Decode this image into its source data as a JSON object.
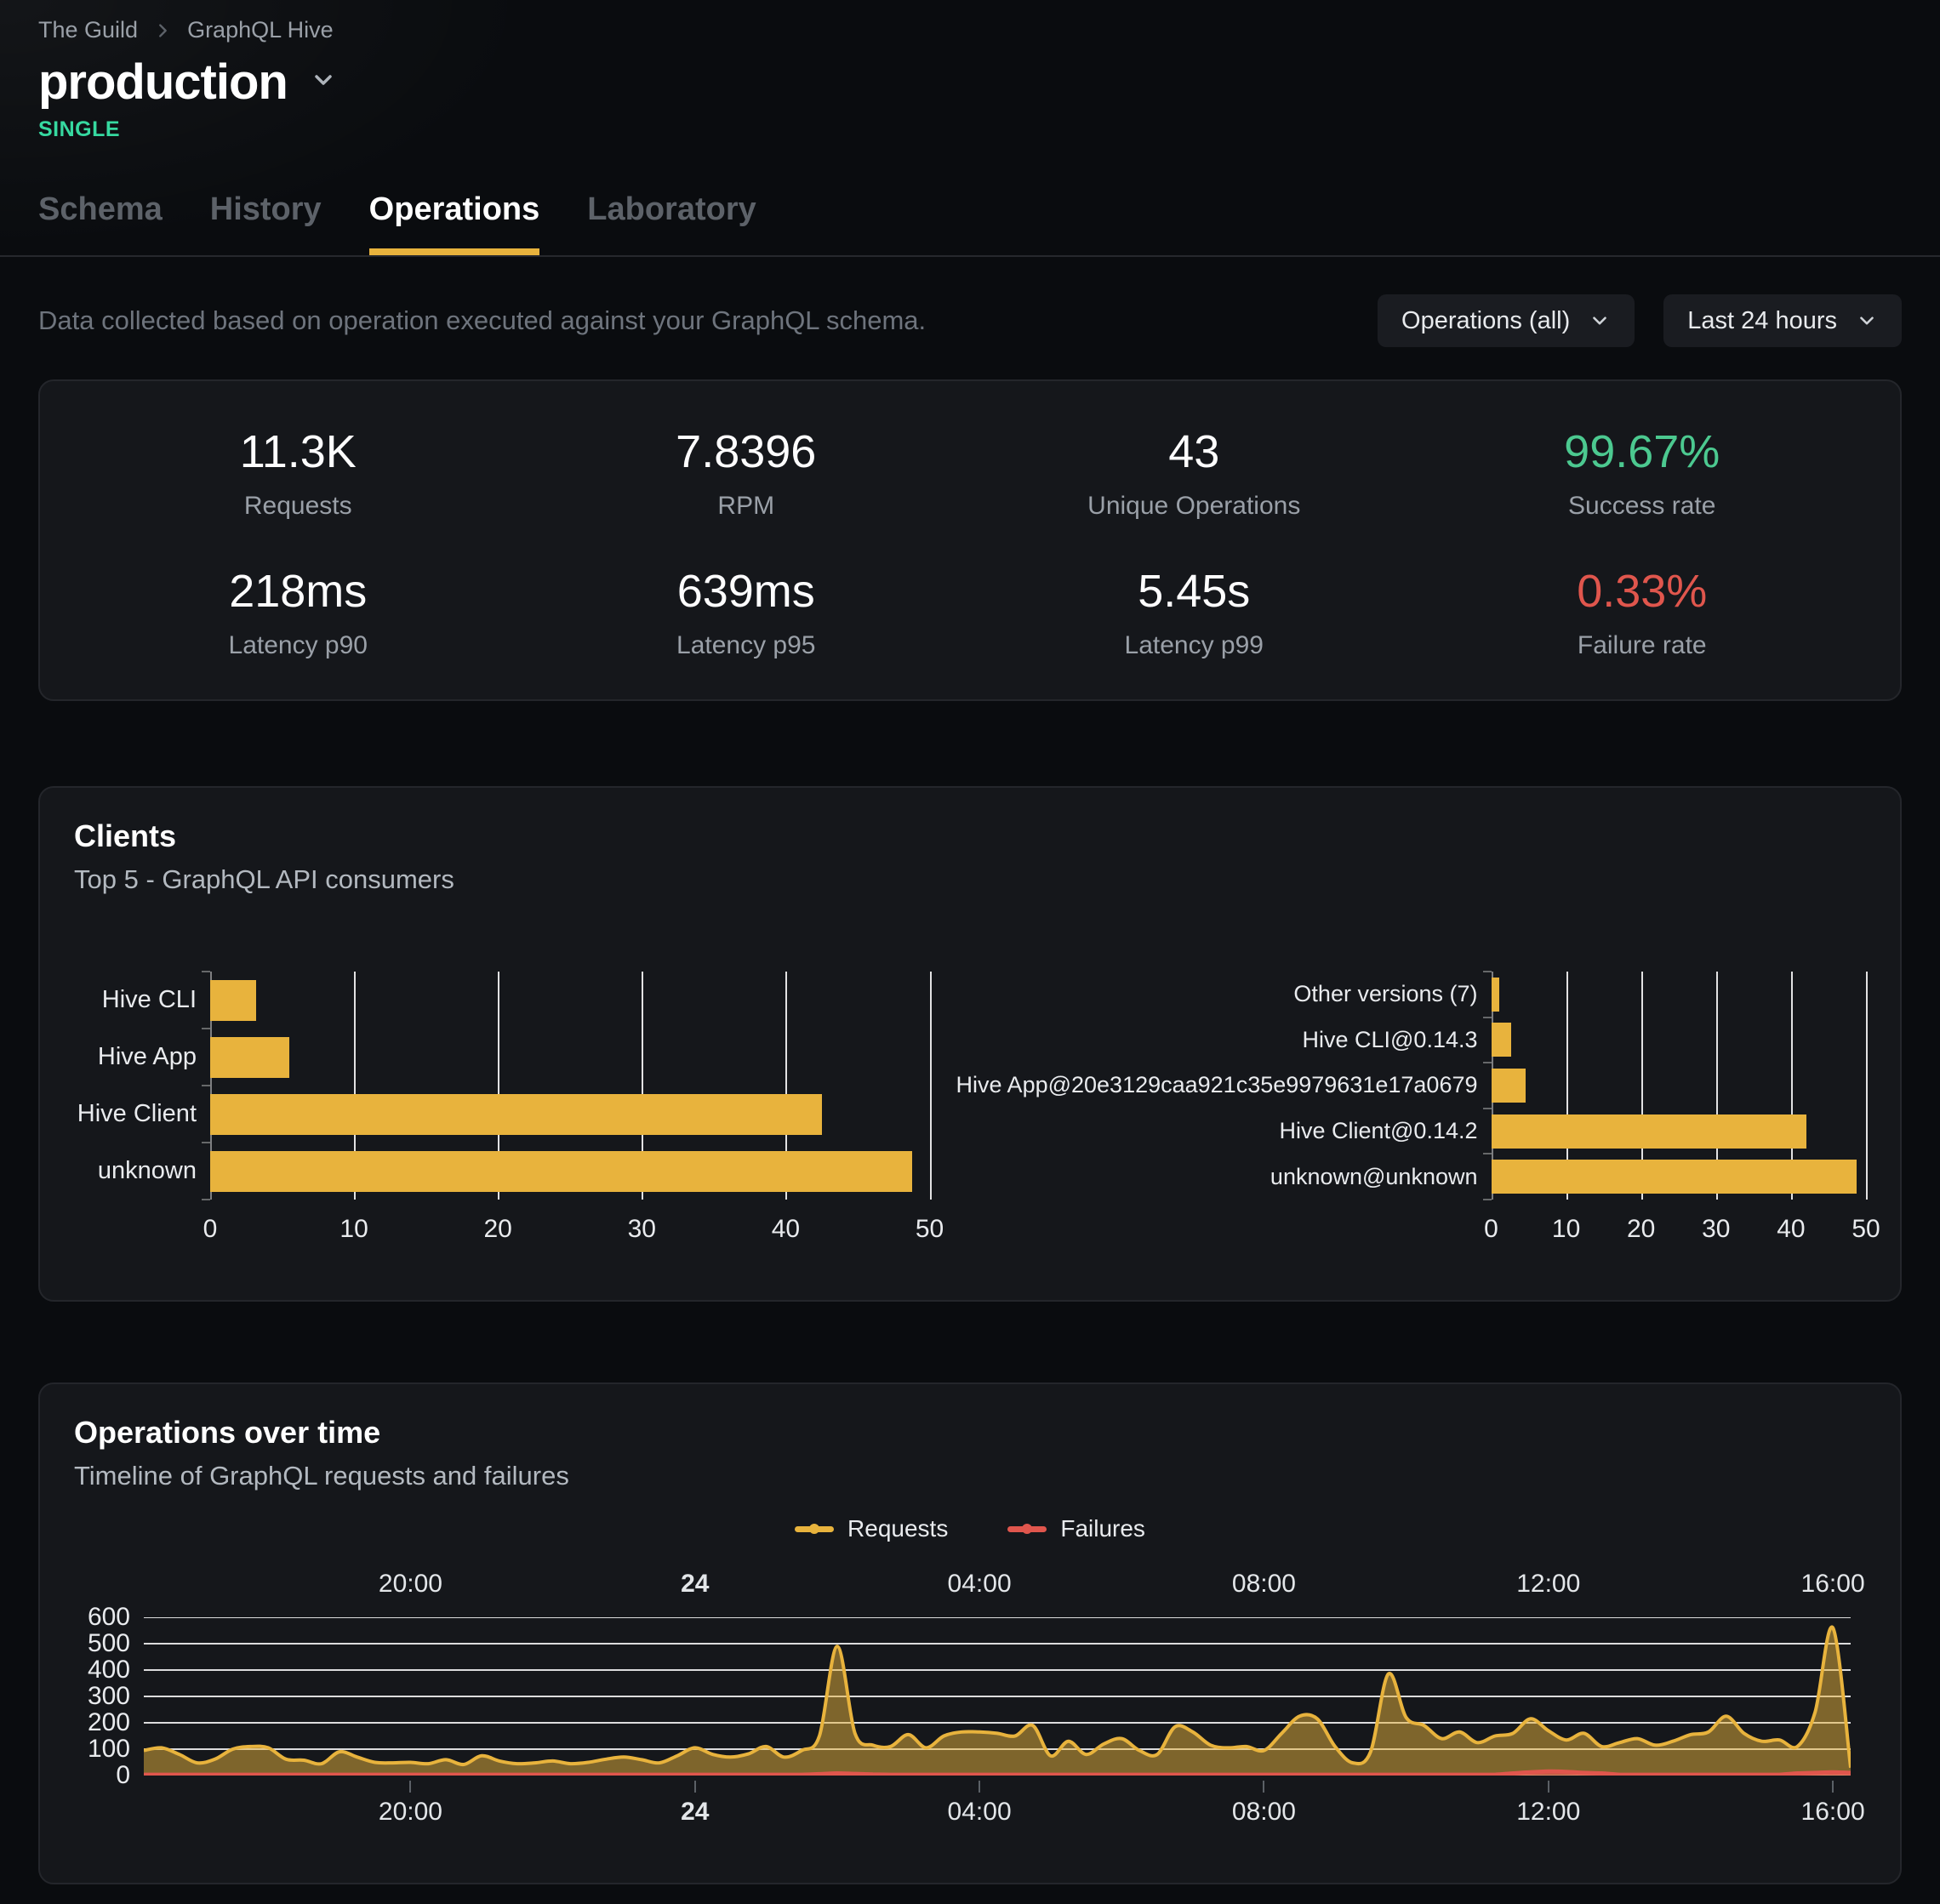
{
  "colors": {
    "accent": "#e8b33d",
    "badge": "#36d9a0",
    "success": "#4cc990",
    "failure": "#e0564d"
  },
  "breadcrumb": {
    "org": "The Guild",
    "project": "GraphQL Hive"
  },
  "header": {
    "target_name": "production",
    "badge": "SINGLE"
  },
  "tabs": [
    {
      "label": "Schema",
      "active": false
    },
    {
      "label": "History",
      "active": false
    },
    {
      "label": "Operations",
      "active": true
    },
    {
      "label": "Laboratory",
      "active": false
    }
  ],
  "controls": {
    "description": "Data collected based on operation executed against your GraphQL schema.",
    "operations_filter": "Operations (all)",
    "period_filter": "Last 24 hours"
  },
  "stats": [
    {
      "value": "11.3K",
      "label": "Requests"
    },
    {
      "value": "7.8396",
      "label": "RPM"
    },
    {
      "value": "43",
      "label": "Unique Operations"
    },
    {
      "value": "99.67%",
      "label": "Success rate",
      "color": "#4cc990"
    },
    {
      "value": "218ms",
      "label": "Latency p90"
    },
    {
      "value": "639ms",
      "label": "Latency p95"
    },
    {
      "value": "5.45s",
      "label": "Latency p99"
    },
    {
      "value": "0.33%",
      "label": "Failure rate",
      "color": "#e0564d"
    }
  ],
  "clients_card": {
    "title": "Clients",
    "subtitle": "Top 5 - GraphQL API consumers"
  },
  "ops_card": {
    "title": "Operations over time",
    "subtitle": "Timeline of GraphQL requests and failures",
    "legend": [
      {
        "label": "Requests",
        "color": "#e8b33d"
      },
      {
        "label": "Failures",
        "color": "#e0564d"
      }
    ]
  },
  "chart_data": [
    {
      "type": "bar",
      "orientation": "horizontal",
      "categories": [
        "Hive CLI",
        "Hive App",
        "Hive Client",
        "unknown"
      ],
      "values": [
        3.2,
        5.5,
        42.5,
        48.8
      ],
      "xlim": [
        0,
        50
      ],
      "xticks": [
        0,
        10,
        20,
        30,
        40,
        50
      ],
      "bar_color": "#e8b33d",
      "grid": true
    },
    {
      "type": "bar",
      "orientation": "horizontal",
      "categories": [
        "Other versions (7)",
        "Hive CLI@0.14.3",
        "Hive App@20e3129caa921c35e9979631e17a0679",
        "Hive Client@0.14.2",
        "unknown@unknown"
      ],
      "values": [
        1.1,
        2.7,
        4.6,
        42.1,
        48.7
      ],
      "xlim": [
        0,
        50
      ],
      "xticks": [
        0,
        10,
        20,
        30,
        40,
        50
      ],
      "bar_color": "#e8b33d",
      "grid": true
    },
    {
      "type": "area",
      "ylim": [
        0,
        600
      ],
      "yticks": [
        0,
        100,
        200,
        300,
        400,
        500,
        600
      ],
      "x_tick_labels": [
        {
          "label": "20:00",
          "index": 15
        },
        {
          "label": "24",
          "index": 31,
          "bold": true
        },
        {
          "label": "04:00",
          "index": 47
        },
        {
          "label": "08:00",
          "index": 63
        },
        {
          "label": "12:00",
          "index": 79
        },
        {
          "label": "16:00",
          "index": 95
        }
      ],
      "grid": true,
      "series": [
        {
          "name": "Requests",
          "color": "#e8b33d",
          "fill_opacity": 0.5,
          "values": [
            95,
            105,
            80,
            48,
            62,
            100,
            110,
            105,
            62,
            58,
            45,
            90,
            70,
            50,
            48,
            50,
            45,
            60,
            42,
            75,
            55,
            45,
            48,
            55,
            45,
            50,
            62,
            70,
            60,
            48,
            75,
            105,
            80,
            70,
            82,
            110,
            70,
            95,
            150,
            490,
            160,
            115,
            110,
            155,
            105,
            150,
            165,
            165,
            160,
            150,
            190,
            75,
            130,
            80,
            120,
            140,
            95,
            80,
            185,
            165,
            115,
            105,
            110,
            95,
            160,
            225,
            215,
            110,
            48,
            90,
            385,
            220,
            190,
            140,
            165,
            125,
            150,
            160,
            215,
            170,
            135,
            160,
            110,
            125,
            140,
            115,
            130,
            155,
            165,
            225,
            160,
            130,
            135,
            110,
            240,
            560,
            30
          ]
        },
        {
          "name": "Failures",
          "color": "#e0564d",
          "fill_opacity": 0.6,
          "values": [
            3,
            3,
            3,
            3,
            3,
            3,
            3,
            3,
            3,
            3,
            3,
            3,
            3,
            3,
            3,
            3,
            3,
            3,
            3,
            3,
            3,
            3,
            3,
            3,
            3,
            3,
            3,
            3,
            3,
            3,
            3,
            3,
            3,
            3,
            3,
            3,
            3,
            3,
            5,
            8,
            6,
            4,
            3,
            3,
            3,
            3,
            3,
            3,
            3,
            3,
            3,
            3,
            3,
            3,
            3,
            3,
            3,
            3,
            3,
            3,
            3,
            3,
            3,
            3,
            3,
            3,
            3,
            3,
            3,
            3,
            3,
            3,
            3,
            3,
            3,
            3,
            3,
            8,
            12,
            15,
            14,
            10,
            8,
            3,
            3,
            3,
            3,
            3,
            3,
            3,
            3,
            3,
            3,
            8,
            10,
            12,
            10
          ]
        }
      ]
    }
  ]
}
